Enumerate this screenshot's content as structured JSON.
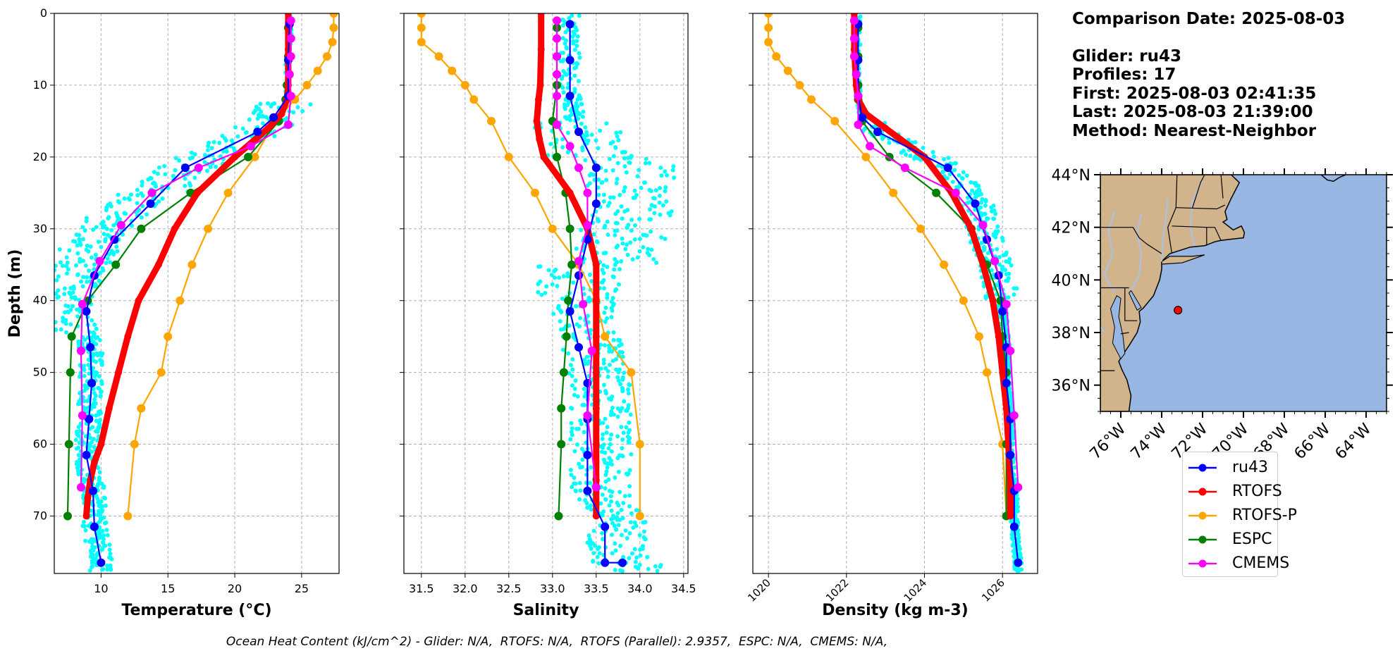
{
  "info": {
    "comparison_date": "Comparison Date: 2025-08-03",
    "glider": "Glider: ru43",
    "profiles": "Profiles: 17",
    "first": "First: 2025-08-03 02:41:35",
    "last": "Last: 2025-08-03 21:39:00",
    "method": "Method: Nearest-Neighbor"
  },
  "footer": "Ocean Heat Content (kJ/cm^2) - Glider: N/A,  RTOFS: N/A,  RTOFS (Parallel): 2.9357,  ESPC: N/A,  CMEMS: N/A,",
  "legend": [
    {
      "name": "ru43",
      "color": "#0000ff"
    },
    {
      "name": "RTOFS",
      "color": "#ff0000"
    },
    {
      "name": "RTOFS-P",
      "color": "#ffa500"
    },
    {
      "name": "ESPC",
      "color": "#008000"
    },
    {
      "name": "CMEMS",
      "color": "#ff00ff"
    }
  ],
  "colors": {
    "glider_raw": "#00ffff",
    "land": "#d2b48c",
    "ocean": "#98b6e2",
    "rivers": "#aac2e8"
  },
  "map": {
    "lon_range": [
      -77,
      -63
    ],
    "lat_range": [
      35,
      44
    ],
    "lat_ticks": [
      {
        "v": 44,
        "label": "44°N"
      },
      {
        "v": 42,
        "label": "42°N"
      },
      {
        "v": 40,
        "label": "40°N"
      },
      {
        "v": 38,
        "label": "38°N"
      },
      {
        "v": 36,
        "label": "36°N"
      }
    ],
    "lon_ticks": [
      {
        "v": -76,
        "label": "76°W"
      },
      {
        "v": -74,
        "label": "74°W"
      },
      {
        "v": -72,
        "label": "72°W"
      },
      {
        "v": -70,
        "label": "70°W"
      },
      {
        "v": -68,
        "label": "68°W"
      },
      {
        "v": -66,
        "label": "66°W"
      },
      {
        "v": -64,
        "label": "64°W"
      }
    ],
    "glider_location": {
      "lon": -73.2,
      "lat": 38.85
    }
  },
  "chart_data": [
    {
      "type": "line",
      "xlabel": "Temperature (°C)",
      "ylabel": "Depth (m)",
      "xlim": [
        6.5,
        27.8
      ],
      "ylim": [
        78,
        0
      ],
      "x_ticks": [
        10,
        15,
        20,
        25
      ],
      "y_ticks": [
        0,
        10,
        20,
        30,
        40,
        50,
        60,
        70
      ],
      "grid": true,
      "series": [
        {
          "name": "ru43",
          "x": [
            24.1,
            24.0,
            24.0,
            22.9,
            21.7,
            16.3,
            13.7,
            11.0,
            9.5,
            8.9,
            9.2,
            9.3,
            9.1,
            8.9,
            9.4,
            9.5,
            10.0
          ],
          "y": [
            1.5,
            6.5,
            11.5,
            14.5,
            16.5,
            21.5,
            26.5,
            31.5,
            36.5,
            41.5,
            46.5,
            51.5,
            56.5,
            61.5,
            66.5,
            71.5,
            76.5
          ]
        },
        {
          "name": "RTOFS",
          "x": [
            24.0,
            24.0,
            24.0,
            23.9,
            23.5,
            22.5,
            20.0,
            17.2,
            15.5,
            14.3,
            12.8,
            12.0,
            11.3,
            10.6,
            10.0,
            9.5,
            9.2,
            9.0,
            8.9
          ],
          "y": [
            0,
            5,
            10,
            12,
            14,
            16,
            20,
            25,
            30,
            35,
            40,
            45,
            50,
            55,
            60,
            62.5,
            65,
            67.5,
            70
          ]
        },
        {
          "name": "RTOFS-P",
          "x": [
            27.4,
            27.4,
            27.3,
            26.9,
            26.2,
            25.4,
            24.5,
            23.0,
            21.5,
            19.5,
            18.0,
            16.8,
            15.9,
            15.0,
            14.5,
            13.0,
            12.5,
            12.0
          ],
          "y": [
            0,
            2,
            4,
            6,
            8,
            10,
            12,
            15,
            20,
            25,
            30,
            35,
            40,
            45,
            50,
            55,
            60,
            70
          ]
        },
        {
          "name": "ESPC",
          "x": [
            24.0,
            24.0,
            23.9,
            23.8,
            23.3,
            21.0,
            16.7,
            13.0,
            11.1,
            9.0,
            7.8,
            7.7,
            7.6,
            7.5
          ],
          "y": [
            2,
            6,
            10,
            12,
            15,
            20,
            25,
            30,
            35,
            40,
            45,
            50,
            60,
            70
          ]
        },
        {
          "name": "CMEMS",
          "x": [
            24.2,
            24.2,
            24.2,
            24.1,
            24.2,
            24.0,
            21.2,
            17.3,
            13.8,
            11.5,
            9.9,
            8.6,
            8.5,
            8.6,
            8.5
          ],
          "y": [
            1,
            3.5,
            6,
            8.5,
            11.5,
            15.5,
            18.5,
            21.5,
            25,
            29.5,
            34.5,
            40.5,
            47,
            56,
            66
          ]
        }
      ]
    },
    {
      "type": "line",
      "xlabel": "Salinity",
      "xlim": [
        31.3,
        34.55
      ],
      "ylim": [
        78,
        0
      ],
      "x_ticks": [
        31.5,
        32.0,
        32.5,
        33.0,
        33.5,
        34.0,
        34.5
      ],
      "y_ticks": [
        0,
        10,
        20,
        30,
        40,
        50,
        60,
        70
      ],
      "grid": true,
      "series": [
        {
          "name": "ru43",
          "x": [
            33.2,
            33.2,
            33.2,
            33.3,
            33.5,
            33.5,
            33.4,
            33.3,
            33.2,
            33.3,
            33.4,
            33.4,
            33.4,
            33.4,
            33.6,
            33.6,
            33.8
          ],
          "y": [
            1.5,
            6.5,
            11.5,
            16.5,
            21.5,
            26.5,
            31.5,
            36.5,
            41.5,
            46.5,
            51.5,
            56.5,
            61.5,
            66.5,
            71.5,
            76.5,
            76.5
          ]
        },
        {
          "name": "RTOFS",
          "x": [
            32.87,
            32.87,
            32.86,
            32.84,
            32.82,
            32.85,
            32.9,
            33.2,
            33.4,
            33.5,
            33.5,
            33.5,
            33.5,
            33.5,
            33.5,
            33.5,
            33.5
          ],
          "y": [
            0,
            5,
            10,
            12,
            15,
            17.5,
            20,
            25,
            30,
            35,
            40,
            45,
            50,
            55,
            60,
            65,
            70
          ]
        },
        {
          "name": "RTOFS-P",
          "x": [
            31.5,
            31.5,
            31.5,
            31.7,
            31.85,
            32.0,
            32.1,
            32.3,
            32.5,
            32.8,
            33.0,
            33.3,
            33.5,
            33.6,
            33.9,
            34.0,
            34.0
          ],
          "y": [
            0,
            2,
            4,
            6,
            8,
            10,
            12,
            15,
            20,
            25,
            30,
            35,
            40,
            45,
            50,
            60,
            70
          ]
        },
        {
          "name": "ESPC",
          "x": [
            33.05,
            33.05,
            33.05,
            33.0,
            33.05,
            33.15,
            33.2,
            33.22,
            33.18,
            33.16,
            33.13,
            33.1,
            33.1,
            33.07
          ],
          "y": [
            2,
            6,
            10,
            15,
            20,
            25,
            30,
            35,
            40,
            45,
            50,
            55,
            60,
            70
          ]
        },
        {
          "name": "CMEMS",
          "x": [
            33.05,
            33.05,
            33.05,
            33.05,
            33.05,
            33.05,
            33.2,
            33.3,
            33.4,
            33.4,
            33.3,
            33.35,
            33.45,
            33.4,
            33.5
          ],
          "y": [
            1,
            3.5,
            6,
            8.5,
            11.5,
            15.5,
            18.5,
            21.5,
            25,
            29.5,
            34.5,
            40.5,
            47,
            56,
            66
          ]
        }
      ]
    },
    {
      "type": "line",
      "xlabel": "Density (kg m-3)",
      "xlim": [
        1019.6,
        1026.9
      ],
      "ylim": [
        78,
        0
      ],
      "x_ticks": [
        1020,
        1022,
        1024,
        1026
      ],
      "y_ticks": [
        0,
        10,
        20,
        30,
        40,
        50,
        60,
        70
      ],
      "grid": true,
      "series": [
        {
          "name": "ru43",
          "x": [
            1022.3,
            1022.3,
            1022.3,
            1022.4,
            1022.8,
            1024.6,
            1025.3,
            1025.6,
            1025.9,
            1026.0,
            1026.1,
            1026.1,
            1026.2,
            1026.2,
            1026.3,
            1026.3,
            1026.4
          ],
          "y": [
            1.5,
            6.5,
            11.5,
            14.5,
            16.5,
            21.5,
            26.5,
            31.5,
            36.5,
            41.5,
            46.5,
            51.5,
            56.5,
            61.5,
            66.5,
            71.5,
            76.5
          ]
        },
        {
          "name": "RTOFS",
          "x": [
            1022.2,
            1022.2,
            1022.25,
            1022.3,
            1022.5,
            1023.0,
            1024.0,
            1024.7,
            1025.2,
            1025.5,
            1025.75,
            1025.9,
            1026.0,
            1026.1,
            1026.15,
            1026.2,
            1026.2
          ],
          "y": [
            0,
            5,
            10,
            12,
            14,
            16,
            20,
            25,
            30,
            35,
            40,
            45,
            50,
            55,
            60,
            65,
            70
          ]
        },
        {
          "name": "RTOFS-P",
          "x": [
            1020.0,
            1020.0,
            1020.0,
            1020.2,
            1020.5,
            1020.8,
            1021.1,
            1021.7,
            1022.5,
            1023.2,
            1023.9,
            1024.5,
            1025.0,
            1025.4,
            1025.6,
            1026.0,
            1026.1
          ],
          "y": [
            0,
            2,
            4,
            6,
            8,
            10,
            12,
            15,
            20,
            25,
            30,
            35,
            40,
            45,
            50,
            60,
            70
          ]
        },
        {
          "name": "ESPC",
          "x": [
            1022.3,
            1022.3,
            1022.3,
            1022.3,
            1022.4,
            1023.1,
            1024.3,
            1025.2,
            1025.6,
            1025.95,
            1026.0,
            1026.1,
            1026.1,
            1026.1
          ],
          "y": [
            2,
            6,
            10,
            12,
            15,
            20,
            25,
            30,
            35,
            40,
            45,
            50,
            60,
            70
          ]
        },
        {
          "name": "CMEMS",
          "x": [
            1022.2,
            1022.2,
            1022.2,
            1022.25,
            1022.3,
            1022.3,
            1022.6,
            1023.5,
            1024.8,
            1025.5,
            1025.8,
            1026.1,
            1026.2,
            1026.3,
            1026.4
          ],
          "y": [
            1,
            3.5,
            6,
            8.5,
            11.5,
            15.5,
            18.5,
            21.5,
            25,
            29.5,
            34.5,
            40.5,
            47,
            56,
            66
          ]
        }
      ]
    }
  ]
}
